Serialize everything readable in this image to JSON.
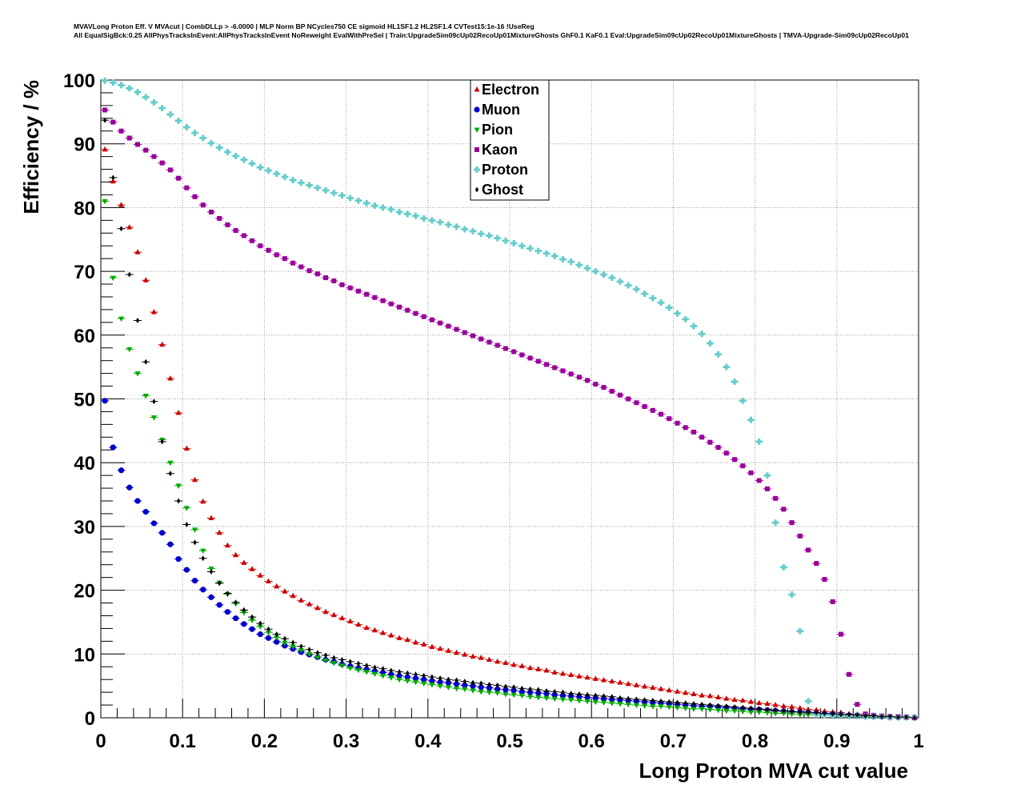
{
  "header": {
    "line1": "MVAVLong Proton Eff. V MVAcut | CombDLLp > -6.0000 | MLP Norm BP NCycles750 CE sigmoid HL1SF1.2 HL2SF1.4 CVTest15:1e-16 !UseReg",
    "line2": "All EqualSigBck:0.25 AllPhysTracksInEvent:AllPhysTracksInEvent NoReweight EvalWithPreSel | Train:UpgradeSim09cUp02RecoUp01MixtureGhosts GhF0.1 KaF0.1 Eval:UpgradeSim09cUp02RecoUp01MixtureGhosts | TMVA-Upgrade-Sim09cUp02RecoUp01"
  },
  "chart_data": {
    "type": "scatter",
    "xlabel": "Long Proton MVA cut value",
    "ylabel": "Efficiency / %",
    "xlim": [
      0,
      1
    ],
    "ylim": [
      0,
      100
    ],
    "x_ticks": [
      "0",
      "0.1",
      "0.2",
      "0.3",
      "0.4",
      "0.5",
      "0.6",
      "0.7",
      "0.8",
      "0.9",
      "1"
    ],
    "y_ticks": [
      "0",
      "10",
      "20",
      "30",
      "40",
      "50",
      "60",
      "70",
      "80",
      "90",
      "100"
    ],
    "grid": true,
    "legend_position": "top-center",
    "x": [
      0.005,
      0.015,
      0.025,
      0.035,
      0.045,
      0.055,
      0.065,
      0.075,
      0.085,
      0.095,
      0.105,
      0.115,
      0.125,
      0.135,
      0.145,
      0.155,
      0.165,
      0.175,
      0.185,
      0.195,
      0.205,
      0.215,
      0.225,
      0.235,
      0.245,
      0.255,
      0.265,
      0.275,
      0.285,
      0.295,
      0.305,
      0.315,
      0.325,
      0.335,
      0.345,
      0.355,
      0.365,
      0.375,
      0.385,
      0.395,
      0.405,
      0.415,
      0.425,
      0.435,
      0.445,
      0.455,
      0.465,
      0.475,
      0.485,
      0.495,
      0.505,
      0.515,
      0.525,
      0.535,
      0.545,
      0.555,
      0.565,
      0.575,
      0.585,
      0.595,
      0.605,
      0.615,
      0.625,
      0.635,
      0.645,
      0.655,
      0.665,
      0.675,
      0.685,
      0.695,
      0.705,
      0.715,
      0.725,
      0.735,
      0.745,
      0.755,
      0.765,
      0.775,
      0.785,
      0.795,
      0.805,
      0.815,
      0.825,
      0.835,
      0.845,
      0.855,
      0.865,
      0.875,
      0.885,
      0.895,
      0.905,
      0.915,
      0.925,
      0.935,
      0.945,
      0.955,
      0.965,
      0.975,
      0.985,
      0.995
    ],
    "series": [
      {
        "name": "Electron",
        "color": "#cc0000",
        "marker": "triangle-up",
        "values": [
          89.1,
          84.1,
          80.4,
          76.9,
          73.0,
          68.6,
          63.6,
          58.5,
          53.2,
          47.8,
          42.2,
          37.3,
          33.9,
          31.3,
          29.0,
          27.0,
          25.5,
          24.3,
          23.3,
          22.3,
          21.4,
          20.6,
          19.8,
          19.1,
          18.4,
          17.8,
          17.2,
          16.6,
          16.1,
          15.6,
          15.1,
          14.6,
          14.1,
          13.7,
          13.3,
          12.9,
          12.5,
          12.2,
          11.8,
          11.5,
          11.1,
          10.8,
          10.5,
          10.2,
          9.9,
          9.6,
          9.4,
          9.1,
          8.8,
          8.6,
          8.3,
          8.1,
          7.8,
          7.6,
          7.4,
          7.1,
          6.9,
          6.7,
          6.5,
          6.3,
          6.1,
          5.9,
          5.7,
          5.5,
          5.3,
          5.1,
          4.9,
          4.7,
          4.5,
          4.3,
          4.1,
          3.9,
          3.7,
          3.5,
          3.4,
          3.2,
          3.0,
          2.8,
          2.7,
          2.5,
          2.3,
          2.2,
          2.0,
          1.8,
          1.7,
          1.5,
          1.3,
          1.2,
          1.0,
          0.9,
          0.8,
          0.6,
          0.5,
          0.4,
          0.3,
          0.2,
          0.2,
          0.1,
          0.1,
          0.0
        ]
      },
      {
        "name": "Muon",
        "color": "#0000cc",
        "marker": "circle",
        "values": [
          49.7,
          42.4,
          38.8,
          36.1,
          34.0,
          32.3,
          30.5,
          29.0,
          27.2,
          24.9,
          23.2,
          21.5,
          20.1,
          18.9,
          17.7,
          16.6,
          15.6,
          14.7,
          13.9,
          13.1,
          12.5,
          11.9,
          11.3,
          10.8,
          10.3,
          9.9,
          9.5,
          9.1,
          8.8,
          8.4,
          8.1,
          7.8,
          7.6,
          7.3,
          7.1,
          6.8,
          6.6,
          6.4,
          6.2,
          6.0,
          5.8,
          5.6,
          5.5,
          5.3,
          5.1,
          5.0,
          4.8,
          4.7,
          4.5,
          4.4,
          4.3,
          4.1,
          4.0,
          3.9,
          3.8,
          3.6,
          3.5,
          3.4,
          3.3,
          3.2,
          3.1,
          3.0,
          2.9,
          2.8,
          2.7,
          2.6,
          2.5,
          2.4,
          2.3,
          2.2,
          2.1,
          2.0,
          1.9,
          1.8,
          1.8,
          1.7,
          1.6,
          1.5,
          1.4,
          1.3,
          1.3,
          1.2,
          1.1,
          1.0,
          0.9,
          0.9,
          0.8,
          0.7,
          0.6,
          0.6,
          0.5,
          0.4,
          0.4,
          0.3,
          0.2,
          0.2,
          0.1,
          0.1,
          0.1,
          0.0
        ]
      },
      {
        "name": "Pion",
        "color": "#00aa00",
        "marker": "triangle-down",
        "values": [
          81.0,
          69.0,
          62.6,
          57.8,
          54.0,
          50.5,
          47.1,
          43.6,
          40.0,
          36.4,
          32.9,
          29.5,
          26.2,
          23.4,
          21.2,
          19.4,
          17.9,
          16.5,
          15.3,
          14.3,
          13.4,
          12.6,
          11.8,
          11.2,
          10.6,
          10.0,
          9.5,
          9.0,
          8.6,
          8.2,
          7.8,
          7.5,
          7.2,
          6.9,
          6.6,
          6.3,
          6.0,
          5.8,
          5.6,
          5.4,
          5.2,
          5.0,
          4.8,
          4.6,
          4.5,
          4.3,
          4.1,
          4.0,
          3.9,
          3.7,
          3.6,
          3.5,
          3.3,
          3.2,
          3.1,
          3.0,
          2.9,
          2.8,
          2.7,
          2.6,
          2.5,
          2.4,
          2.3,
          2.2,
          2.1,
          2.0,
          1.9,
          1.8,
          1.8,
          1.7,
          1.6,
          1.5,
          1.4,
          1.4,
          1.3,
          1.2,
          1.1,
          1.1,
          1.0,
          0.9,
          0.9,
          0.8,
          0.7,
          0.7,
          0.6,
          0.5,
          0.5,
          0.4,
          0.4,
          0.3,
          0.3,
          0.2,
          0.2,
          0.1,
          0.1,
          0.1,
          0.0,
          0.0,
          0.0,
          0.0
        ]
      },
      {
        "name": "Kaon",
        "color": "#990099",
        "marker": "square",
        "values": [
          95.3,
          93.4,
          92.0,
          90.9,
          89.9,
          89.0,
          88.0,
          87.0,
          85.9,
          84.6,
          83.1,
          81.7,
          80.4,
          79.3,
          78.3,
          77.3,
          76.4,
          75.6,
          74.8,
          74.0,
          73.3,
          72.6,
          72.0,
          71.3,
          70.7,
          70.1,
          69.6,
          69.0,
          68.5,
          67.9,
          67.4,
          66.9,
          66.4,
          65.9,
          65.4,
          64.9,
          64.4,
          63.9,
          63.4,
          62.9,
          62.4,
          61.9,
          61.4,
          60.9,
          60.4,
          59.9,
          59.4,
          58.9,
          58.4,
          57.9,
          57.4,
          56.9,
          56.4,
          55.9,
          55.4,
          54.9,
          54.4,
          53.9,
          53.4,
          52.9,
          52.3,
          51.8,
          51.2,
          50.6,
          50.0,
          49.4,
          48.8,
          48.2,
          47.6,
          46.9,
          46.2,
          45.5,
          44.8,
          44.0,
          43.2,
          42.4,
          41.5,
          40.5,
          39.5,
          38.4,
          37.2,
          35.9,
          34.4,
          32.7,
          30.6,
          28.5,
          26.3,
          24.2,
          21.7,
          18.2,
          13.1,
          6.8,
          2.1,
          0.6,
          0.4,
          0.3,
          0.2,
          0.2,
          0.1,
          0.0
        ]
      },
      {
        "name": "Proton",
        "color": "#66cccc",
        "marker": "cross",
        "values": [
          99.9,
          99.6,
          99.2,
          98.7,
          98.1,
          97.3,
          96.5,
          95.6,
          94.6,
          93.6,
          92.6,
          91.7,
          90.9,
          90.1,
          89.4,
          88.7,
          88.1,
          87.5,
          86.9,
          86.3,
          85.8,
          85.3,
          84.8,
          84.3,
          83.9,
          83.5,
          83.1,
          82.7,
          82.3,
          81.9,
          81.5,
          81.1,
          80.7,
          80.3,
          80.0,
          79.7,
          79.3,
          79.0,
          78.7,
          78.3,
          78.0,
          77.7,
          77.3,
          77.0,
          76.6,
          76.3,
          75.9,
          75.6,
          75.2,
          74.8,
          74.4,
          74.0,
          73.6,
          73.2,
          72.8,
          72.4,
          71.9,
          71.5,
          71.0,
          70.5,
          70.0,
          69.5,
          69.0,
          68.4,
          67.8,
          67.2,
          66.5,
          65.8,
          65.1,
          64.3,
          63.4,
          62.5,
          61.4,
          60.2,
          58.7,
          57.0,
          55.0,
          52.7,
          49.7,
          46.7,
          43.3,
          38.0,
          30.6,
          23.6,
          19.3,
          13.6,
          2.6,
          0.5,
          0.4,
          0.3,
          0.3,
          0.3,
          0.3,
          0.2,
          0.2,
          0.2,
          0.1,
          0.1,
          0.1,
          0.1
        ]
      },
      {
        "name": "Ghost",
        "color": "#000000",
        "marker": "diamond",
        "values": [
          93.7,
          84.7,
          76.7,
          69.5,
          62.3,
          55.8,
          49.6,
          43.3,
          38.3,
          34.0,
          30.3,
          27.5,
          25.0,
          22.9,
          21.1,
          19.5,
          18.1,
          16.9,
          15.8,
          14.8,
          13.9,
          13.1,
          12.4,
          11.8,
          11.2,
          10.7,
          10.2,
          9.8,
          9.4,
          9.1,
          8.8,
          8.5,
          8.2,
          7.9,
          7.7,
          7.4,
          7.2,
          7.0,
          6.8,
          6.6,
          6.4,
          6.2,
          6.0,
          5.9,
          5.7,
          5.5,
          5.4,
          5.2,
          5.1,
          4.9,
          4.8,
          4.6,
          4.5,
          4.4,
          4.2,
          4.1,
          4.0,
          3.8,
          3.7,
          3.6,
          3.5,
          3.4,
          3.3,
          3.1,
          3.0,
          2.9,
          2.8,
          2.7,
          2.6,
          2.5,
          2.4,
          2.3,
          2.2,
          2.1,
          2.0,
          1.9,
          1.8,
          1.7,
          1.6,
          1.5,
          1.4,
          1.3,
          1.2,
          1.1,
          1.0,
          0.9,
          0.9,
          0.8,
          0.7,
          0.6,
          0.5,
          0.5,
          0.4,
          0.3,
          0.3,
          0.2,
          0.2,
          0.1,
          0.1,
          0.0
        ]
      }
    ]
  }
}
